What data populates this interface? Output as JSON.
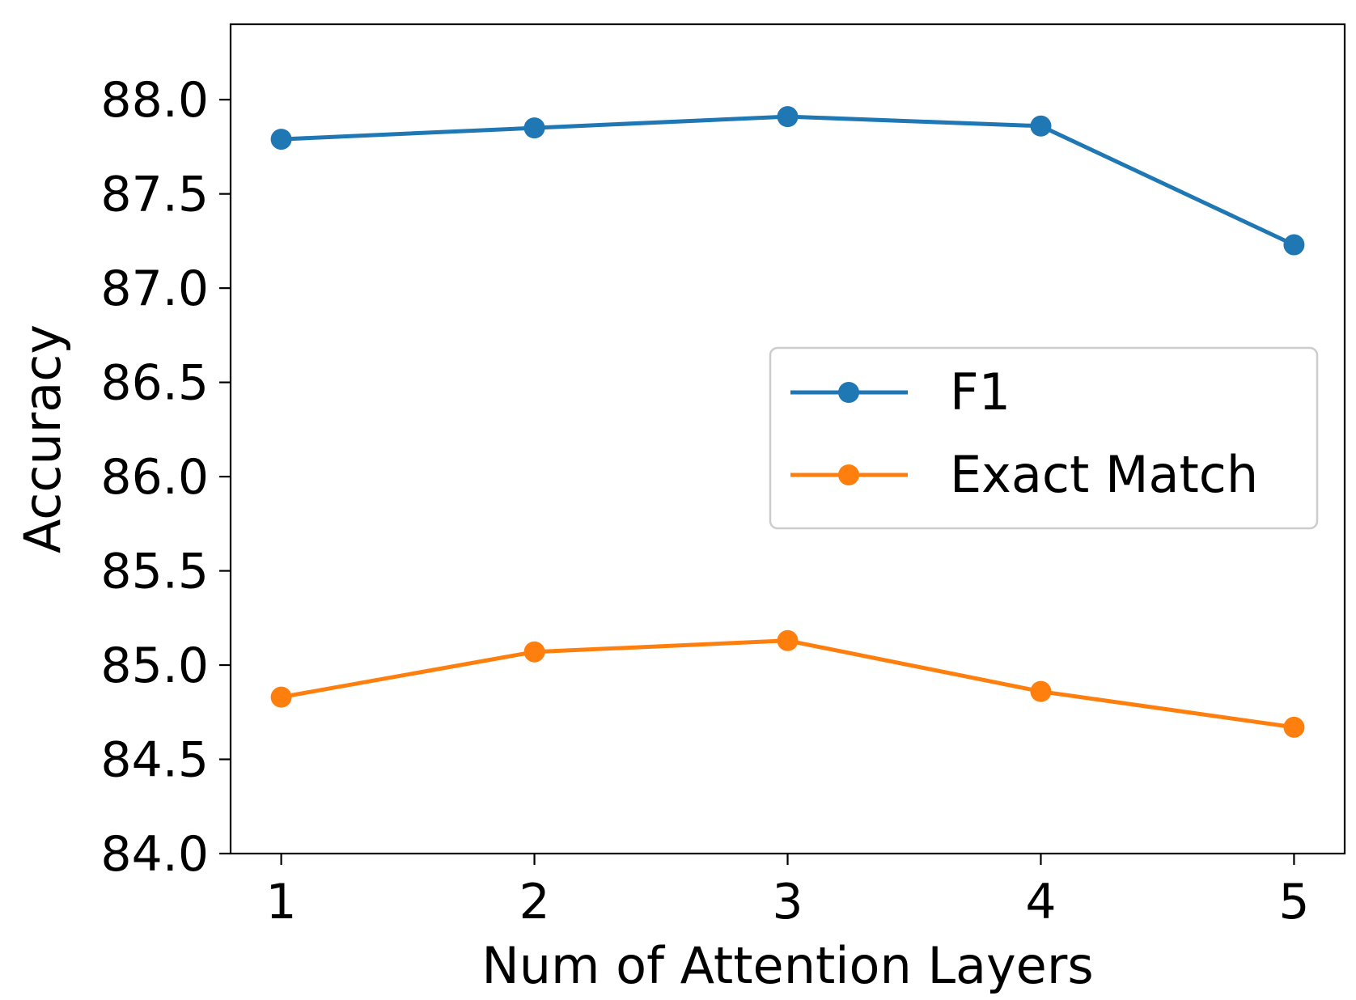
{
  "chart_data": {
    "type": "line",
    "x": [
      1,
      2,
      3,
      4,
      5
    ],
    "xlabel": "Num of Attention Layers",
    "ylabel": "Accuracy",
    "xlim": [
      0.8,
      5.2
    ],
    "ylim": [
      84.0,
      88.4
    ],
    "x_ticks": [
      "1",
      "2",
      "3",
      "4",
      "5"
    ],
    "y_ticks": [
      "84.0",
      "84.5",
      "85.0",
      "85.5",
      "86.0",
      "86.5",
      "87.0",
      "87.5",
      "88.0"
    ],
    "grid": false,
    "legend_position": "center-right",
    "series": [
      {
        "name": "F1",
        "color": "#1f77b4",
        "values": [
          87.79,
          87.85,
          87.91,
          87.86,
          87.23
        ]
      },
      {
        "name": "Exact Match",
        "color": "#ff7f0e",
        "values": [
          84.83,
          85.07,
          85.13,
          84.86,
          84.67
        ]
      }
    ]
  }
}
